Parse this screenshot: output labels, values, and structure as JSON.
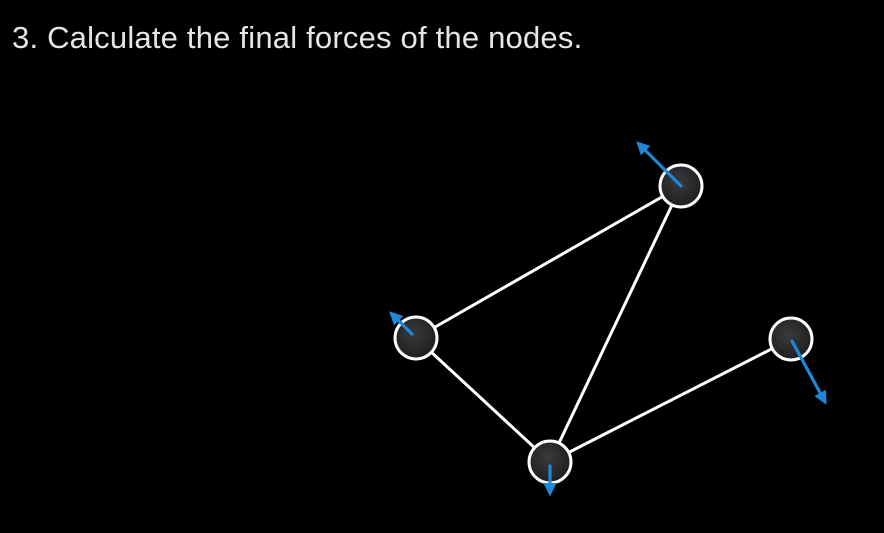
{
  "slide": {
    "title": "3. Calculate the final forces of the nodes."
  },
  "colors": {
    "background": "#000000",
    "text": "#e6e6e6",
    "edge": "#ffffff",
    "node_fill": "#2a2a2c",
    "node_stroke": "#ffffff",
    "force_arrow": "#1e88d6"
  },
  "graph": {
    "nodes": [
      {
        "id": "top"
      },
      {
        "id": "left"
      },
      {
        "id": "bottom"
      },
      {
        "id": "right"
      }
    ],
    "edges": [
      {
        "from": "left",
        "to": "top"
      },
      {
        "from": "top",
        "to": "bottom"
      },
      {
        "from": "left",
        "to": "bottom"
      },
      {
        "from": "bottom",
        "to": "right"
      }
    ],
    "forces": [
      {
        "node": "top",
        "direction": "up-left"
      },
      {
        "node": "left",
        "direction": "up-left"
      },
      {
        "node": "bottom",
        "direction": "down"
      },
      {
        "node": "right",
        "direction": "down-right"
      }
    ]
  }
}
